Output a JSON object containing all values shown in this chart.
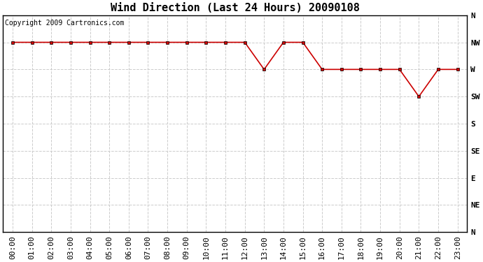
{
  "title": "Wind Direction (Last 24 Hours) 20090108",
  "copyright_text": "Copyright 2009 Cartronics.com",
  "hours": [
    0,
    1,
    2,
    3,
    4,
    5,
    6,
    7,
    8,
    9,
    10,
    11,
    12,
    13,
    14,
    15,
    16,
    17,
    18,
    19,
    20,
    21,
    22,
    23
  ],
  "directions_deg": [
    315,
    315,
    315,
    315,
    315,
    315,
    315,
    315,
    315,
    315,
    315,
    315,
    315,
    270,
    315,
    315,
    270,
    270,
    270,
    270,
    270,
    225,
    270,
    270
  ],
  "ytick_values": [
    360,
    315,
    270,
    225,
    180,
    135,
    90,
    45,
    0
  ],
  "ytick_labels": [
    "N",
    "NW",
    "W",
    "SW",
    "S",
    "SE",
    "E",
    "NE",
    "N"
  ],
  "line_color": "#cc0000",
  "marker": "s",
  "marker_color": "#000000",
  "marker_size": 3,
  "grid_color": "#cccccc",
  "background_color": "#ffffff",
  "plot_bg_color": "#ffffff",
  "title_fontsize": 11,
  "tick_fontsize": 8,
  "copyright_fontsize": 7
}
